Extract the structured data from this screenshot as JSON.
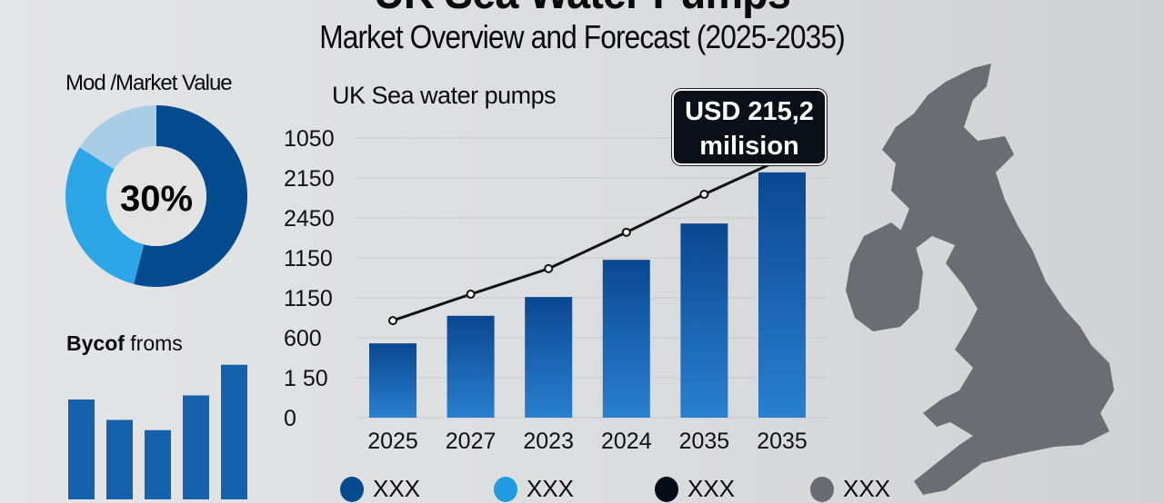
{
  "header": {
    "title": "UK Sea Water Pumps",
    "subtitle": "Market Overview and Forecast (2025-2035)"
  },
  "donut": {
    "title": "Mod /Market Value",
    "center_label": "30%",
    "slices": [
      {
        "value": 54,
        "color": "#034a8f"
      },
      {
        "value": 30,
        "color": "#2ca6e6"
      },
      {
        "value": 16,
        "color": "#a9cde6"
      }
    ]
  },
  "small_bars": {
    "title_bold": "Bycof",
    "title_rest": " froms",
    "values": [
      3.0,
      2.5,
      2.25,
      3.1,
      3.85
    ],
    "color": "#1561ab"
  },
  "chart_data": {
    "type": "bar",
    "title": "UK Sea water pumps",
    "categories": [
      "2025",
      "2027",
      "2023",
      "2024",
      "2035",
      "2035"
    ],
    "y_tick_labels": [
      "0",
      "1 50",
      "600",
      "1150",
      "1150",
      "2450",
      "2150",
      "1050"
    ],
    "ylim": [
      0,
      7
    ],
    "series": [
      {
        "type": "bar",
        "values": [
          1.86,
          2.55,
          3.02,
          3.95,
          4.86,
          6.14
        ],
        "color": "#0e4f98"
      },
      {
        "type": "line",
        "values": [
          2.43,
          3.09,
          3.73,
          4.64,
          5.59,
          6.48
        ],
        "color": "#111111"
      }
    ],
    "annotation": {
      "line1": "USD 215,2",
      "line2": "milision"
    },
    "grid": true
  },
  "legend": [
    {
      "label": "XXX",
      "color": "#034a8f"
    },
    {
      "label": "XXX",
      "color": "#1f9be0"
    },
    {
      "label": "XXX",
      "color": "#060b18"
    },
    {
      "label": "XXX",
      "color": "#696d73"
    }
  ],
  "map": {
    "color": "#6a6d72"
  }
}
